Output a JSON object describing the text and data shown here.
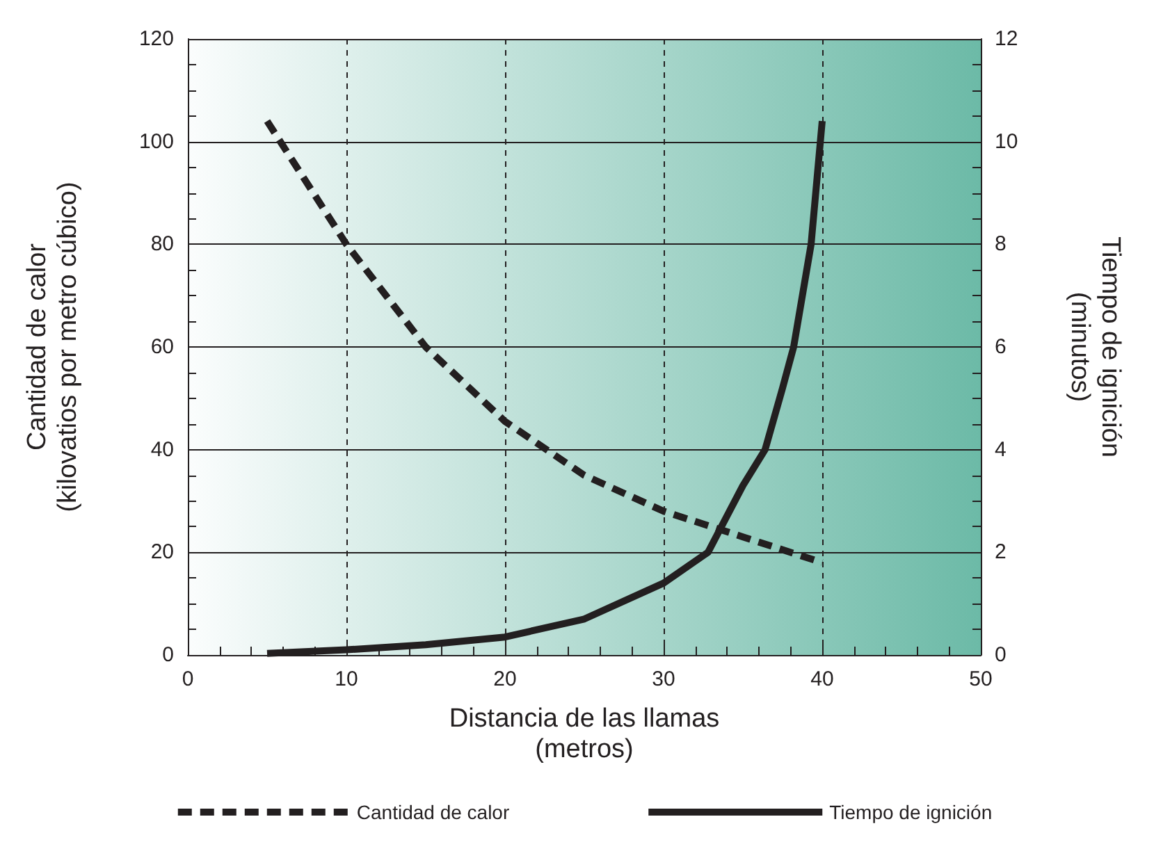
{
  "chart_data": {
    "type": "line",
    "xlabel": "Distancia de las llamas\n(metros)",
    "ylabel": "Cantidad de calor\n(kilovatios por metro cúbico)",
    "y2label": "Tiempo de ignición\n(minutos)",
    "xlim": [
      0,
      50
    ],
    "xticks": [
      0,
      10,
      20,
      30,
      40,
      50
    ],
    "ylim": [
      0,
      120
    ],
    "yticks": [
      0,
      20,
      40,
      60,
      80,
      100,
      120
    ],
    "y2lim": [
      0,
      12
    ],
    "y2ticks": [
      0,
      2,
      4,
      6,
      8,
      10,
      12
    ],
    "grid": true,
    "legend": "bottom",
    "marker": "none",
    "series": [
      {
        "name": "Cantidad de calor",
        "color": "#231f20",
        "line_style": "dashed",
        "x": [
          5,
          10,
          15,
          20,
          25,
          30,
          35,
          40
        ],
        "values": [
          104,
          80,
          60,
          45.5,
          35,
          28,
          23,
          18
        ]
      },
      {
        "name": "Tiempo de ignición",
        "color": "#231f20",
        "line_style": "solid",
        "axis": "y2",
        "x": [
          5,
          10,
          15,
          20,
          25,
          30,
          32.8,
          35,
          36.4,
          37.5,
          38.2,
          39.3,
          40
        ],
        "values": [
          0.03,
          0.1,
          0.2,
          0.35,
          0.7,
          1.4,
          2,
          3.3,
          4,
          5.2,
          6,
          8,
          10.4
        ]
      }
    ]
  }
}
